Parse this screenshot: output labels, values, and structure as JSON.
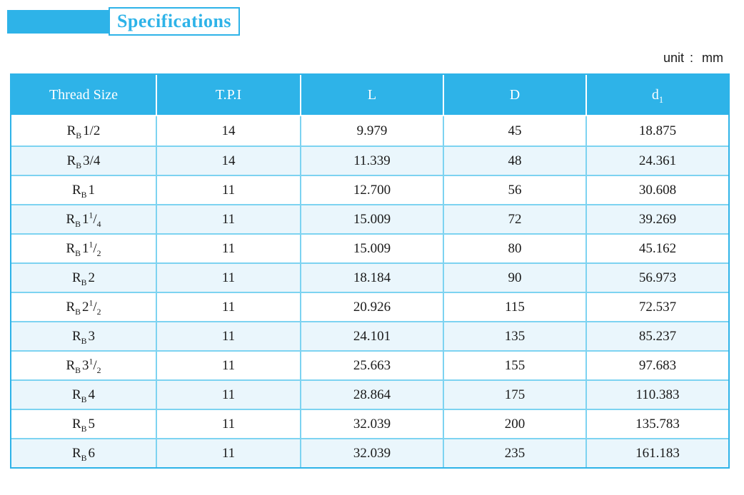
{
  "title": {
    "label": "Specifications"
  },
  "unit_note": {
    "label": "unit",
    "separator": ":",
    "value": "mm"
  },
  "colors": {
    "accent": "#2EB3E8",
    "row_alt": "#EAF6FC",
    "grid_line": "#7DD3F1",
    "header_text": "#FFFFFF",
    "body_text": "#1A1A1A"
  },
  "table": {
    "columns": [
      {
        "text": "Thread Size",
        "sub": ""
      },
      {
        "text": "T.P.I",
        "sub": ""
      },
      {
        "text": "L",
        "sub": ""
      },
      {
        "text": "D",
        "sub": ""
      },
      {
        "text": "d",
        "sub": "1"
      }
    ],
    "rows": [
      {
        "thread": {
          "base": "R",
          "base_sub": "B",
          "size": "1/2",
          "frac_sup": "",
          "frac_slash": "",
          "frac_sub": ""
        },
        "tpi": "14",
        "l": "9.979",
        "d": "45",
        "d1": "18.875"
      },
      {
        "thread": {
          "base": "R",
          "base_sub": "B",
          "size": "3/4",
          "frac_sup": "",
          "frac_slash": "",
          "frac_sub": ""
        },
        "tpi": "14",
        "l": "11.339",
        "d": "48",
        "d1": "24.361"
      },
      {
        "thread": {
          "base": "R",
          "base_sub": "B",
          "size": "1",
          "frac_sup": "",
          "frac_slash": "",
          "frac_sub": ""
        },
        "tpi": "11",
        "l": "12.700",
        "d": "56",
        "d1": "30.608"
      },
      {
        "thread": {
          "base": "R",
          "base_sub": "B",
          "size": "1",
          "frac_sup": "1",
          "frac_slash": "/",
          "frac_sub": "4"
        },
        "tpi": "11",
        "l": "15.009",
        "d": "72",
        "d1": "39.269"
      },
      {
        "thread": {
          "base": "R",
          "base_sub": "B",
          "size": "1",
          "frac_sup": "1",
          "frac_slash": "/",
          "frac_sub": "2"
        },
        "tpi": "11",
        "l": "15.009",
        "d": "80",
        "d1": "45.162"
      },
      {
        "thread": {
          "base": "R",
          "base_sub": "B",
          "size": "2",
          "frac_sup": "",
          "frac_slash": "",
          "frac_sub": ""
        },
        "tpi": "11",
        "l": "18.184",
        "d": "90",
        "d1": "56.973"
      },
      {
        "thread": {
          "base": "R",
          "base_sub": "B",
          "size": "2",
          "frac_sup": "1",
          "frac_slash": "/",
          "frac_sub": "2"
        },
        "tpi": "11",
        "l": "20.926",
        "d": "115",
        "d1": "72.537"
      },
      {
        "thread": {
          "base": "R",
          "base_sub": "B",
          "size": "3",
          "frac_sup": "",
          "frac_slash": "",
          "frac_sub": ""
        },
        "tpi": "11",
        "l": "24.101",
        "d": "135",
        "d1": "85.237"
      },
      {
        "thread": {
          "base": "R",
          "base_sub": "B",
          "size": "3",
          "frac_sup": "1",
          "frac_slash": "/",
          "frac_sub": "2"
        },
        "tpi": "11",
        "l": "25.663",
        "d": "155",
        "d1": "97.683"
      },
      {
        "thread": {
          "base": "R",
          "base_sub": "B",
          "size": "4",
          "frac_sup": "",
          "frac_slash": "",
          "frac_sub": ""
        },
        "tpi": "11",
        "l": "28.864",
        "d": "175",
        "d1": "110.383"
      },
      {
        "thread": {
          "base": "R",
          "base_sub": "B",
          "size": "5",
          "frac_sup": "",
          "frac_slash": "",
          "frac_sub": ""
        },
        "tpi": "11",
        "l": "32.039",
        "d": "200",
        "d1": "135.783"
      },
      {
        "thread": {
          "base": "R",
          "base_sub": "B",
          "size": "6",
          "frac_sup": "",
          "frac_slash": "",
          "frac_sub": ""
        },
        "tpi": "11",
        "l": "32.039",
        "d": "235",
        "d1": "161.183"
      }
    ]
  }
}
